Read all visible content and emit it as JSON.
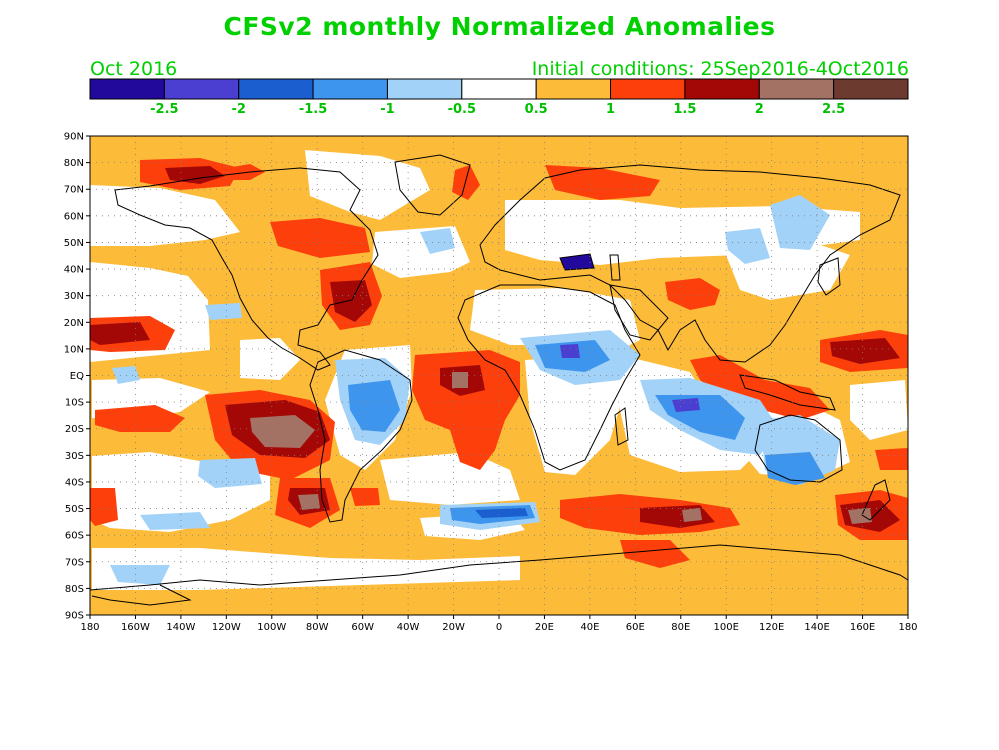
{
  "title": "CFSv2 monthly Normalized Anomalies",
  "subtitle_left": "Oct 2016",
  "subtitle_right": "Initial conditions: 25Sep2016-4Oct2016",
  "colorbar": {
    "colors": [
      "#22099b",
      "#4a3fd0",
      "#1a5ed0",
      "#3e95ee",
      "#a2d2f8",
      "#ffffff",
      "#fdbb3a",
      "#fd3f0b",
      "#a30806",
      "#a37264",
      "#6c3a2e"
    ],
    "labels": [
      "-2.5",
      "-2",
      "-1.5",
      "-1",
      "-0.5",
      "0.5",
      "1",
      "1.5",
      "2",
      "2.5"
    ]
  },
  "lat_labels": [
    "90N",
    "80N",
    "70N",
    "60N",
    "50N",
    "40N",
    "30N",
    "20N",
    "10N",
    "EQ",
    "10S",
    "20S",
    "30S",
    "40S",
    "50S",
    "60S",
    "70S",
    "80S",
    "90S"
  ],
  "lon_labels": [
    "180",
    "160W",
    "140W",
    "120W",
    "100W",
    "80W",
    "60W",
    "40W",
    "20W",
    "0",
    "20E",
    "40E",
    "60E",
    "80E",
    "100E",
    "120E",
    "140E",
    "160E",
    "180"
  ],
  "colors": {
    "title_green": "#00d000",
    "ocean_base": "#fdbb3a"
  }
}
